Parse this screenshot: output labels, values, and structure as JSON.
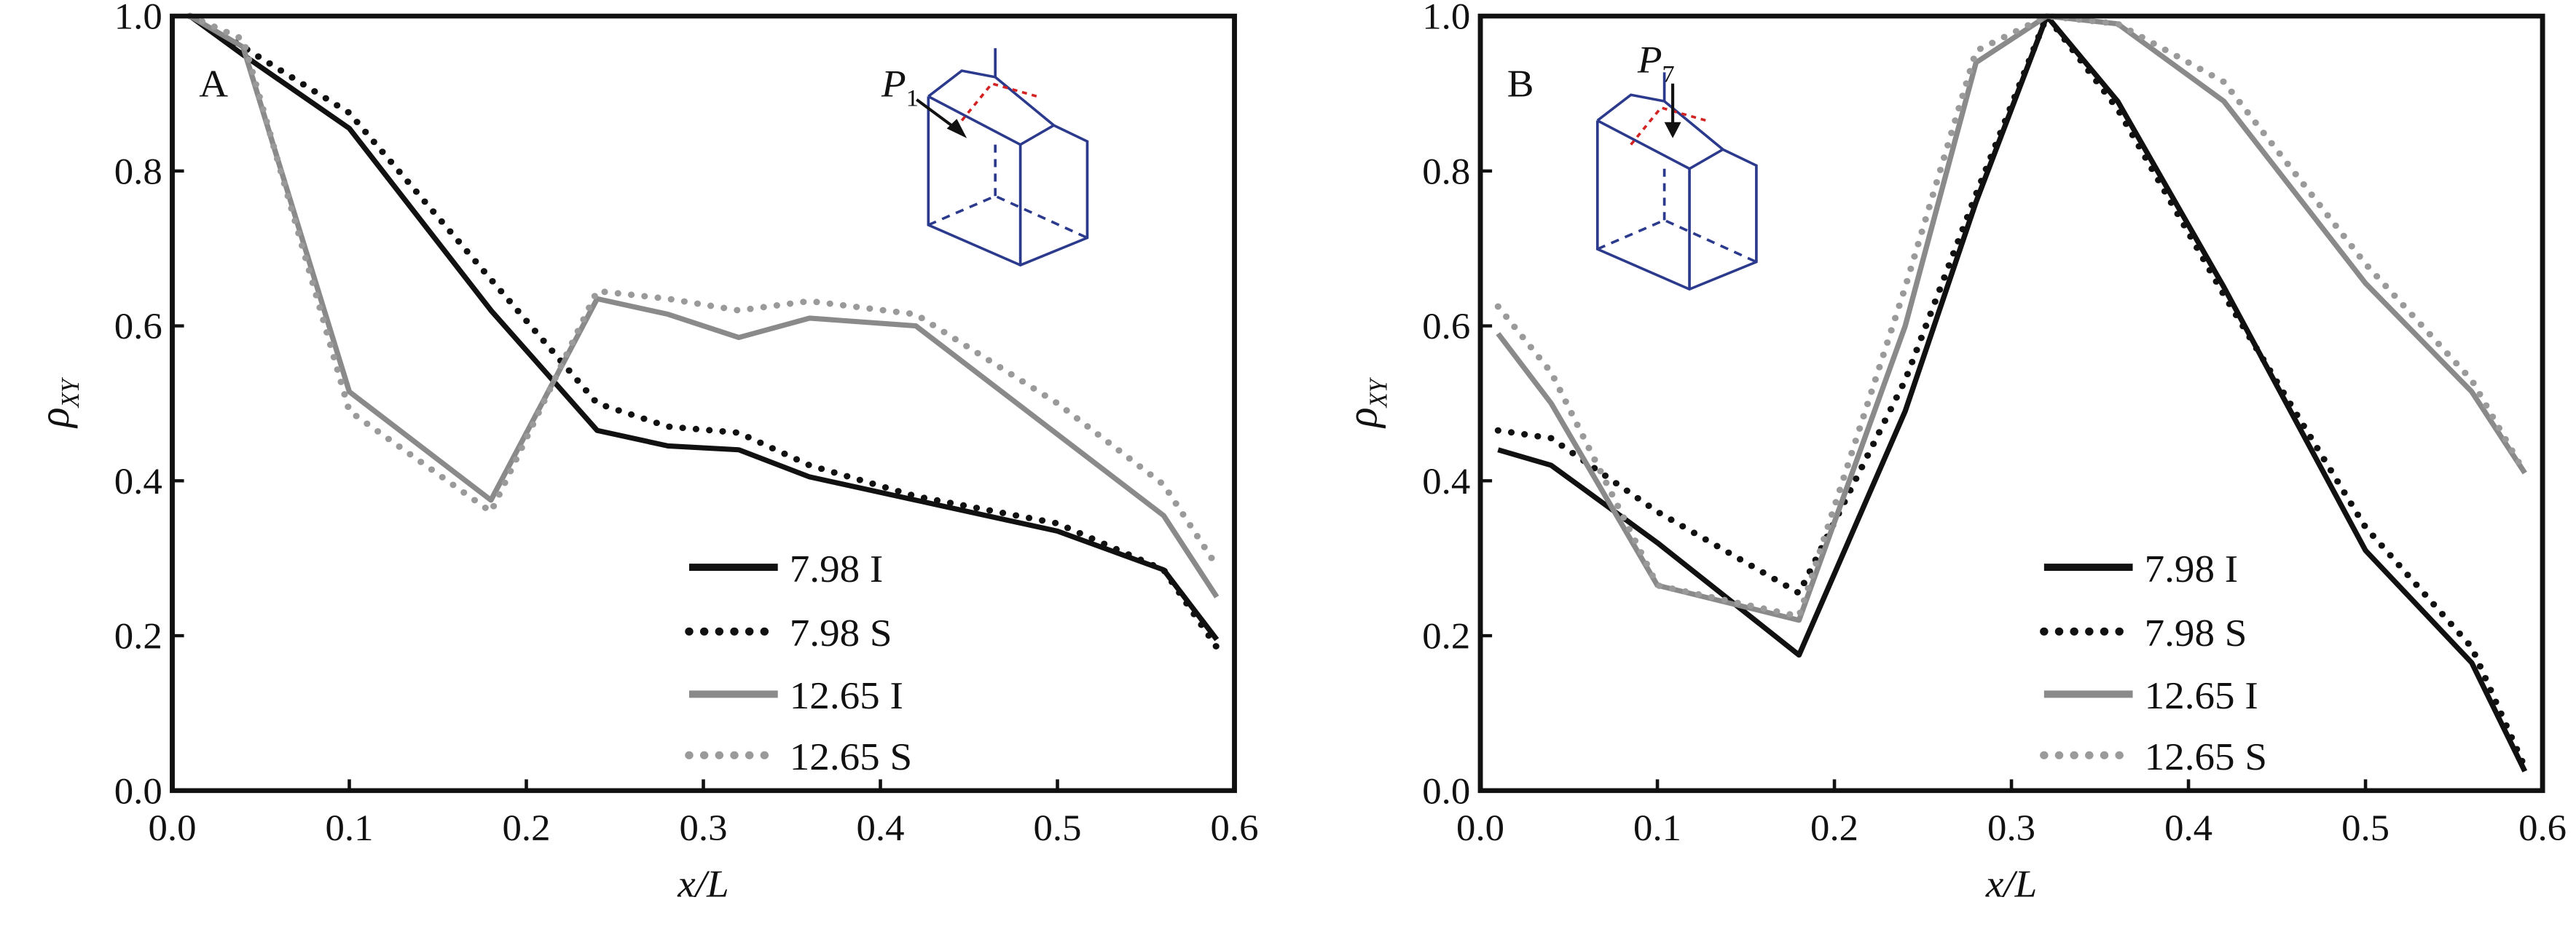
{
  "chart_data": [
    {
      "type": "line",
      "panel_label": "A",
      "inset_point_label": "P",
      "inset_point_subscript": "1",
      "xlabel": "x/L",
      "ylabel": "ρ",
      "ylabel_subscript": "XY",
      "xlim": [
        0,
        0.6
      ],
      "ylim": [
        0,
        1.0
      ],
      "xticks": [
        "0.0",
        "0.1",
        "0.2",
        "0.3",
        "0.4",
        "0.5",
        "0.6"
      ],
      "yticks": [
        "0.0",
        "0.2",
        "0.4",
        "0.6",
        "0.8",
        "1.0"
      ],
      "legend_placement": "bottom-center",
      "x": [
        0.01,
        0.04,
        0.1,
        0.18,
        0.24,
        0.28,
        0.32,
        0.36,
        0.42,
        0.5,
        0.56,
        0.59
      ],
      "series": [
        {
          "name": "7.98 I",
          "color": "#111111",
          "style": "solid",
          "values": [
            1.0,
            0.95,
            0.855,
            0.62,
            0.465,
            0.445,
            0.44,
            0.405,
            0.375,
            0.335,
            0.285,
            0.195
          ]
        },
        {
          "name": "7.98 S",
          "color": "#111111",
          "style": "dotted",
          "values": [
            1.0,
            0.96,
            0.875,
            0.66,
            0.5,
            0.47,
            0.462,
            0.42,
            0.38,
            0.345,
            0.285,
            0.185
          ]
        },
        {
          "name": "12.65 I",
          "color": "#8a8a8a",
          "style": "solid",
          "values": [
            1.0,
            0.96,
            0.515,
            0.375,
            0.635,
            0.615,
            0.585,
            0.61,
            0.6,
            0.46,
            0.355,
            0.25
          ]
        },
        {
          "name": "12.65 S",
          "color": "#9a9a9a",
          "style": "dotted",
          "values": [
            1.0,
            0.97,
            0.49,
            0.36,
            0.645,
            0.635,
            0.62,
            0.632,
            0.615,
            0.5,
            0.395,
            0.29
          ]
        }
      ]
    },
    {
      "type": "line",
      "panel_label": "B",
      "inset_point_label": "P",
      "inset_point_subscript": "7",
      "xlabel": "x/L",
      "ylabel": "ρ",
      "ylabel_subscript": "XY",
      "xlim": [
        0,
        0.6
      ],
      "ylim": [
        0,
        1.0
      ],
      "xticks": [
        "0.0",
        "0.1",
        "0.2",
        "0.3",
        "0.4",
        "0.5",
        "0.6"
      ],
      "yticks": [
        "0.0",
        "0.2",
        "0.4",
        "0.6",
        "0.8",
        "1.0"
      ],
      "legend_placement": "bottom-right",
      "x": [
        0.01,
        0.04,
        0.1,
        0.18,
        0.24,
        0.28,
        0.32,
        0.36,
        0.42,
        0.5,
        0.56,
        0.59
      ],
      "series": [
        {
          "name": "7.98 I",
          "color": "#111111",
          "style": "solid",
          "values": [
            0.44,
            0.42,
            0.32,
            0.175,
            0.49,
            0.76,
            1.0,
            0.89,
            0.65,
            0.31,
            0.165,
            0.025
          ]
        },
        {
          "name": "7.98 S",
          "color": "#111111",
          "style": "dotted",
          "values": [
            0.465,
            0.455,
            0.36,
            0.255,
            0.53,
            0.77,
            1.0,
            0.88,
            0.64,
            0.34,
            0.185,
            0.03
          ]
        },
        {
          "name": "12.65 I",
          "color": "#8a8a8a",
          "style": "solid",
          "values": [
            0.59,
            0.5,
            0.265,
            0.22,
            0.6,
            0.94,
            1.0,
            0.99,
            0.89,
            0.655,
            0.515,
            0.41
          ]
        },
        {
          "name": "12.65 S",
          "color": "#9a9a9a",
          "style": "dotted",
          "values": [
            0.625,
            0.54,
            0.265,
            0.225,
            0.65,
            0.955,
            1.0,
            0.99,
            0.915,
            0.68,
            0.53,
            0.41
          ]
        }
      ]
    }
  ],
  "colors": {
    "axis": "#111111",
    "inset": "#2b3a8c",
    "inset_highlight": "#d22222"
  }
}
